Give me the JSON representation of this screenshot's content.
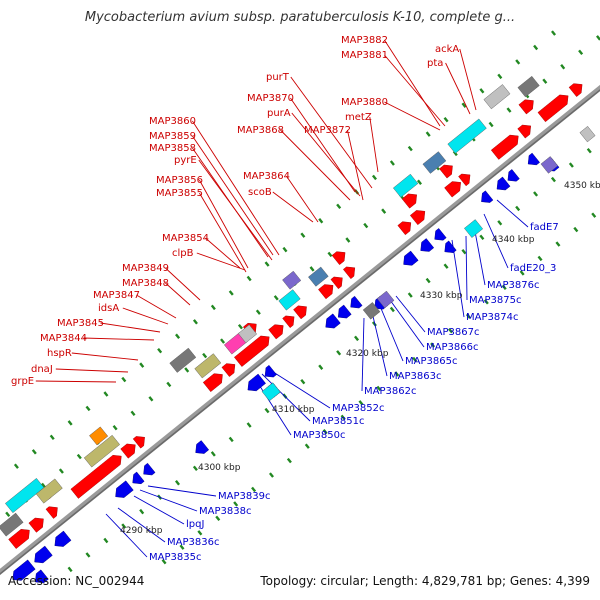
{
  "header": {
    "title": "Mycobacterium avium subsp. paratuberculosis K-10, complete g..."
  },
  "footer": {
    "accession": "Accession: NC_002944",
    "info": "Topology: circular; Length: 4,829,781 bp; Genes: 4,399"
  },
  "ruler": {
    "ticks": [
      "4290 kbp",
      "4300 kbp",
      "4310 kbp",
      "4320 kbp",
      "4330 kbp",
      "4340 kbp",
      "4350 kbp"
    ]
  },
  "colors": {
    "forward_label": "#cc0000",
    "reverse_label": "#0000cc",
    "forward_gene": "#ff0000",
    "reverse_gene": "#0000ee",
    "tick_dot": "#228822",
    "backbone": "#888888",
    "cog_cyan": "#00e5ee",
    "cog_khaki": "#bdb76b",
    "cog_gray": "#777777",
    "cog_silver": "#c0c0c0",
    "cog_slate": "#4a7fb0",
    "cog_purple": "#7b68cc",
    "cog_pink": "#ff3fb0",
    "cog_orange": "#ff8c00"
  },
  "forward_labels": [
    "MAP3882",
    "MAP3881",
    "ackA",
    "pta",
    "purT",
    "MAP3870",
    "purA",
    "MAP3880",
    "MAP3868",
    "MAP3872",
    "metZ",
    "MAP3860",
    "MAP3859",
    "MAP3858",
    "pyrE",
    "MAP3864",
    "MAP3856",
    "MAP3855",
    "scoB",
    "MAP3854",
    "clpB",
    "MAP3849",
    "MAP3848",
    "MAP3847",
    "idsA",
    "MAP3845",
    "MAP3844",
    "hspR",
    "dnaJ",
    "grpE"
  ],
  "reverse_labels": [
    "fadE7",
    "fadE20_3",
    "MAP3876c",
    "MAP3875c",
    "MAP3874c",
    "MAP3867c",
    "MAP3866c",
    "MAP3865c",
    "MAP3863c",
    "MAP3862c",
    "MAP3852c",
    "MAP3851c",
    "MAP3850c",
    "MAP3839c",
    "MAP3838c",
    "lpqJ",
    "MAP3836c",
    "MAP3835c"
  ]
}
